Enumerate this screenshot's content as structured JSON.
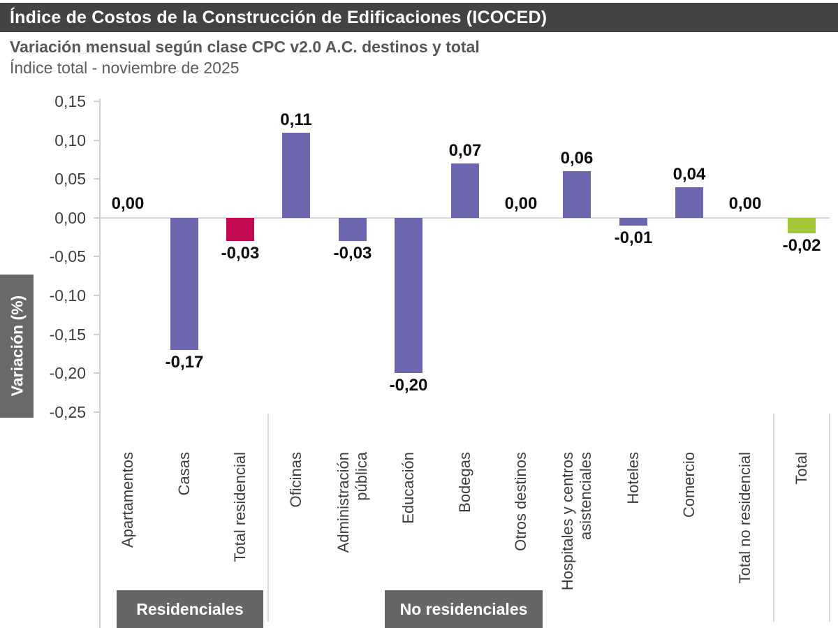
{
  "header": {
    "title": "Índice de Costos de la Construcción de Edificaciones (ICOCED)"
  },
  "subtitle": {
    "line1": "Variación mensual según clase CPC v2.0 A.C. destinos y total",
    "line2": "Índice total - noviembre de 2025"
  },
  "colors": {
    "header_bg": "#434343",
    "box_gray": "#666666",
    "ylabel_box_gray": "#696969",
    "bar_purple": "#6B66AE",
    "bar_crimson": "#C20A53",
    "bar_green": "#A1C637",
    "axis_line": "#d0d0d0",
    "zero_line": "#d9d9d9",
    "tick_text": "#3d3d3d",
    "value_text": "#0d0d0d"
  },
  "chart_data": {
    "type": "bar",
    "title": "Índice de Costos de la Construcción de Edificaciones (ICOCED)",
    "subtitle": "Variación mensual según clase CPC v2.0 A.C. destinos y total",
    "period": "Índice total - noviembre de 2025",
    "xlabel": "",
    "ylabel": "Variación (%)",
    "ylim": [
      -0.25,
      0.15
    ],
    "ytick_step": 0.05,
    "ytick_labels": [
      "0,15",
      "0,10",
      "0,05",
      "0,00",
      "-0,05",
      "-0,10",
      "-0,15",
      "-0,20",
      "-0,25"
    ],
    "grid": "zero-line-only",
    "legend": "none",
    "categories": [
      "Apartamentos",
      "Casas",
      "Total residencial",
      "Oficinas",
      "Administración pública",
      "Educación",
      "Bodegas",
      "Otros destinos",
      "Hospitales y centros asistenciales",
      "Hoteles",
      "Comercio",
      "Total no residencial",
      "Total"
    ],
    "category_lines": [
      [
        "Apartamentos"
      ],
      [
        "Casas"
      ],
      [
        "Total residencial"
      ],
      [
        "Oficinas"
      ],
      [
        "Administración",
        "pública"
      ],
      [
        "Educación"
      ],
      [
        "Bodegas"
      ],
      [
        "Otros destinos"
      ],
      [
        "Hospitales y centros",
        "asistenciales"
      ],
      [
        "Hoteles"
      ],
      [
        "Comercio"
      ],
      [
        "Total no residencial"
      ],
      [
        "Total"
      ]
    ],
    "values": [
      0.0,
      -0.17,
      -0.03,
      0.11,
      -0.03,
      -0.2,
      0.07,
      0.0,
      0.06,
      -0.01,
      0.04,
      0.0,
      -0.02
    ],
    "value_labels": [
      "0,00",
      "-0,17",
      "-0,03",
      "0,11",
      "-0,03",
      "-0,20",
      "0,07",
      "0,00",
      "0,06",
      "-0,01",
      "0,04",
      "0,00",
      "-0,02"
    ],
    "bar_colors": [
      "#6B66AE",
      "#6B66AE",
      "#C20A53",
      "#6B66AE",
      "#6B66AE",
      "#6B66AE",
      "#6B66AE",
      "#6B66AE",
      "#6B66AE",
      "#6B66AE",
      "#6B66AE",
      "#6B66AE",
      "#A1C637"
    ],
    "groups": [
      {
        "label": "Residenciales",
        "from": 0,
        "to": 2
      },
      {
        "label": "No residenciales",
        "from": 3,
        "to": 11
      }
    ]
  }
}
